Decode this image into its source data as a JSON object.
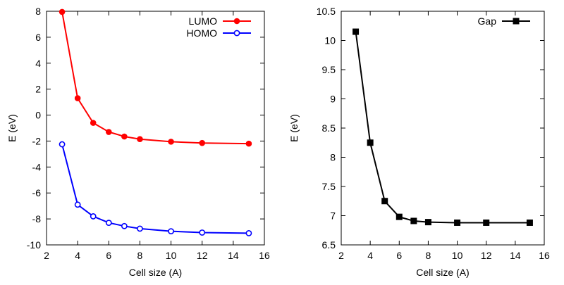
{
  "chart_data": [
    {
      "type": "line",
      "xlabel": "Cell size (A)",
      "ylabel": "E (eV)",
      "xlim": [
        2,
        16
      ],
      "ylim": [
        -10,
        8
      ],
      "xticks": [
        "2",
        "4",
        "6",
        "8",
        "10",
        "12",
        "14",
        "16"
      ],
      "yticks": [
        "-10",
        "-8",
        "-6",
        "-4",
        "-2",
        "0",
        "2",
        "4",
        "6",
        "8"
      ],
      "legend_position": "top-right",
      "grid": false,
      "x": [
        3,
        4,
        5,
        6,
        7,
        8,
        10,
        12,
        15
      ],
      "series": [
        {
          "name": "LUMO",
          "color": "#ff0000",
          "marker": "filled-circle",
          "values": [
            7.95,
            1.3,
            -0.6,
            -1.3,
            -1.65,
            -1.85,
            -2.05,
            -2.15,
            -2.2
          ]
        },
        {
          "name": "HOMO",
          "color": "#0000ff",
          "marker": "open-circle",
          "values": [
            -2.25,
            -6.9,
            -7.8,
            -8.3,
            -8.55,
            -8.75,
            -8.95,
            -9.05,
            -9.1
          ]
        }
      ]
    },
    {
      "type": "line",
      "xlabel": "Cell size (A)",
      "ylabel": "E (eV)",
      "xlim": [
        2,
        16
      ],
      "ylim": [
        6.5,
        10.5
      ],
      "xticks": [
        "2",
        "4",
        "6",
        "8",
        "10",
        "12",
        "14",
        "16"
      ],
      "yticks": [
        "6.5",
        "7",
        "7.5",
        "8",
        "8.5",
        "9",
        "9.5",
        "10",
        "10.5"
      ],
      "legend_position": "top-right",
      "grid": false,
      "x": [
        3,
        4,
        5,
        6,
        7,
        8,
        10,
        12,
        15
      ],
      "series": [
        {
          "name": "Gap",
          "color": "#000000",
          "marker": "filled-square",
          "values": [
            10.15,
            8.25,
            7.25,
            6.98,
            6.91,
            6.89,
            6.88,
            6.88,
            6.88
          ]
        }
      ]
    }
  ]
}
